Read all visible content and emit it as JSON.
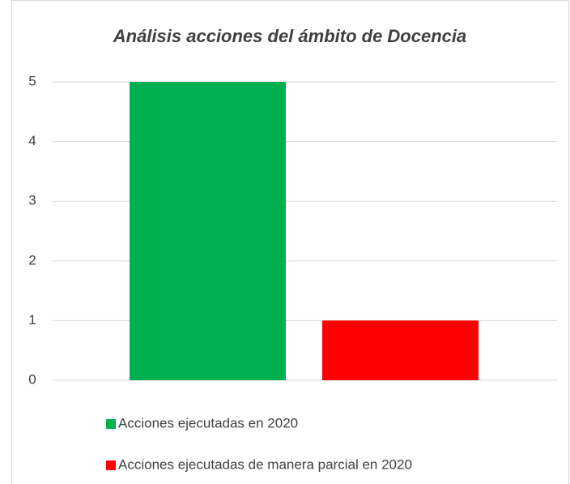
{
  "chart_data": {
    "type": "bar",
    "title": "Análisis acciones del ámbito de Docencia",
    "categories": [
      null
    ],
    "series": [
      {
        "name": "Acciones ejecutadas en 2020",
        "color": "#00b050",
        "values": [
          5
        ]
      },
      {
        "name": "Acciones ejecutadas de manera parcial en 2020",
        "color": "#ff0000",
        "values": [
          1
        ]
      }
    ],
    "ylim": [
      0,
      5
    ],
    "yticks": [
      0,
      1,
      2,
      3,
      4,
      5
    ],
    "grid": true,
    "legend": "bottom"
  }
}
